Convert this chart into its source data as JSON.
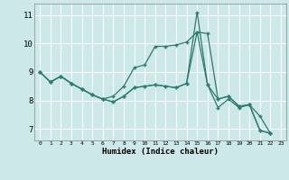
{
  "xlabel": "Humidex (Indice chaleur)",
  "bg_color": "#cce8e8",
  "line_color": "#2d7a6e",
  "xlim": [
    -0.5,
    23.5
  ],
  "ylim": [
    6.6,
    11.4
  ],
  "xticks": [
    0,
    1,
    2,
    3,
    4,
    5,
    6,
    7,
    8,
    9,
    10,
    11,
    12,
    13,
    14,
    15,
    16,
    17,
    18,
    19,
    20,
    21,
    22,
    23
  ],
  "yticks": [
    7,
    8,
    9,
    10,
    11
  ],
  "series": [
    [
      9.0,
      8.65,
      8.85,
      8.6,
      8.4,
      8.2,
      8.05,
      8.15,
      8.5,
      9.15,
      9.25,
      9.9,
      9.9,
      9.95,
      10.05,
      10.4,
      10.35,
      8.05,
      8.15,
      7.8,
      7.85,
      6.95,
      6.85
    ],
    [
      9.0,
      8.65,
      8.85,
      8.6,
      8.4,
      8.2,
      8.05,
      7.95,
      8.15,
      8.45,
      8.5,
      8.55,
      8.5,
      8.45,
      8.6,
      11.1,
      8.55,
      8.05,
      8.15,
      7.8,
      7.85,
      6.95,
      6.85
    ],
    [
      9.0,
      8.65,
      8.85,
      8.6,
      8.4,
      8.2,
      8.05,
      7.95,
      8.15,
      8.45,
      8.5,
      8.55,
      8.5,
      8.45,
      8.6,
      10.4,
      8.55,
      7.75,
      8.05,
      7.75,
      7.85,
      7.45,
      6.85
    ]
  ]
}
